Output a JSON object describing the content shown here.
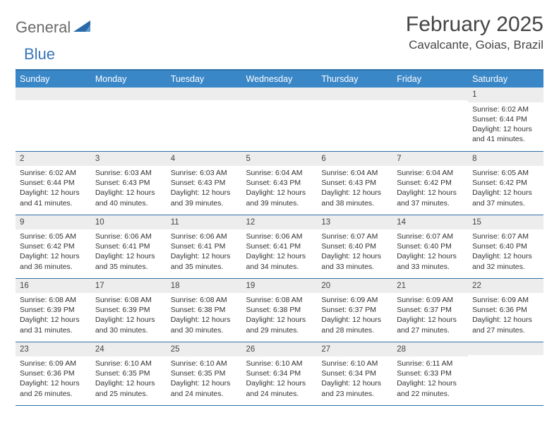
{
  "logo": {
    "part1": "General",
    "part2": "Blue"
  },
  "title": "February 2025",
  "location": "Cavalcante, Goias, Brazil",
  "colors": {
    "header_bg": "#3a87c8",
    "header_text": "#ffffff",
    "border": "#2f6fa8",
    "daynum_bg": "#ededed",
    "page_bg": "#ffffff",
    "text": "#333333",
    "logo_gray": "#6a6a6a",
    "logo_blue": "#3a75b8"
  },
  "typography": {
    "title_fontsize": 30,
    "location_fontsize": 17,
    "header_fontsize": 12.5,
    "cell_fontsize": 10.5,
    "daynum_fontsize": 11.5
  },
  "weekdays": [
    "Sunday",
    "Monday",
    "Tuesday",
    "Wednesday",
    "Thursday",
    "Friday",
    "Saturday"
  ],
  "weeks": [
    [
      {
        "n": "",
        "t": ""
      },
      {
        "n": "",
        "t": ""
      },
      {
        "n": "",
        "t": ""
      },
      {
        "n": "",
        "t": ""
      },
      {
        "n": "",
        "t": ""
      },
      {
        "n": "",
        "t": ""
      },
      {
        "n": "1",
        "t": "Sunrise: 6:02 AM\nSunset: 6:44 PM\nDaylight: 12 hours and 41 minutes."
      }
    ],
    [
      {
        "n": "2",
        "t": "Sunrise: 6:02 AM\nSunset: 6:44 PM\nDaylight: 12 hours and 41 minutes."
      },
      {
        "n": "3",
        "t": "Sunrise: 6:03 AM\nSunset: 6:43 PM\nDaylight: 12 hours and 40 minutes."
      },
      {
        "n": "4",
        "t": "Sunrise: 6:03 AM\nSunset: 6:43 PM\nDaylight: 12 hours and 39 minutes."
      },
      {
        "n": "5",
        "t": "Sunrise: 6:04 AM\nSunset: 6:43 PM\nDaylight: 12 hours and 39 minutes."
      },
      {
        "n": "6",
        "t": "Sunrise: 6:04 AM\nSunset: 6:43 PM\nDaylight: 12 hours and 38 minutes."
      },
      {
        "n": "7",
        "t": "Sunrise: 6:04 AM\nSunset: 6:42 PM\nDaylight: 12 hours and 37 minutes."
      },
      {
        "n": "8",
        "t": "Sunrise: 6:05 AM\nSunset: 6:42 PM\nDaylight: 12 hours and 37 minutes."
      }
    ],
    [
      {
        "n": "9",
        "t": "Sunrise: 6:05 AM\nSunset: 6:42 PM\nDaylight: 12 hours and 36 minutes."
      },
      {
        "n": "10",
        "t": "Sunrise: 6:06 AM\nSunset: 6:41 PM\nDaylight: 12 hours and 35 minutes."
      },
      {
        "n": "11",
        "t": "Sunrise: 6:06 AM\nSunset: 6:41 PM\nDaylight: 12 hours and 35 minutes."
      },
      {
        "n": "12",
        "t": "Sunrise: 6:06 AM\nSunset: 6:41 PM\nDaylight: 12 hours and 34 minutes."
      },
      {
        "n": "13",
        "t": "Sunrise: 6:07 AM\nSunset: 6:40 PM\nDaylight: 12 hours and 33 minutes."
      },
      {
        "n": "14",
        "t": "Sunrise: 6:07 AM\nSunset: 6:40 PM\nDaylight: 12 hours and 33 minutes."
      },
      {
        "n": "15",
        "t": "Sunrise: 6:07 AM\nSunset: 6:40 PM\nDaylight: 12 hours and 32 minutes."
      }
    ],
    [
      {
        "n": "16",
        "t": "Sunrise: 6:08 AM\nSunset: 6:39 PM\nDaylight: 12 hours and 31 minutes."
      },
      {
        "n": "17",
        "t": "Sunrise: 6:08 AM\nSunset: 6:39 PM\nDaylight: 12 hours and 30 minutes."
      },
      {
        "n": "18",
        "t": "Sunrise: 6:08 AM\nSunset: 6:38 PM\nDaylight: 12 hours and 30 minutes."
      },
      {
        "n": "19",
        "t": "Sunrise: 6:08 AM\nSunset: 6:38 PM\nDaylight: 12 hours and 29 minutes."
      },
      {
        "n": "20",
        "t": "Sunrise: 6:09 AM\nSunset: 6:37 PM\nDaylight: 12 hours and 28 minutes."
      },
      {
        "n": "21",
        "t": "Sunrise: 6:09 AM\nSunset: 6:37 PM\nDaylight: 12 hours and 27 minutes."
      },
      {
        "n": "22",
        "t": "Sunrise: 6:09 AM\nSunset: 6:36 PM\nDaylight: 12 hours and 27 minutes."
      }
    ],
    [
      {
        "n": "23",
        "t": "Sunrise: 6:09 AM\nSunset: 6:36 PM\nDaylight: 12 hours and 26 minutes."
      },
      {
        "n": "24",
        "t": "Sunrise: 6:10 AM\nSunset: 6:35 PM\nDaylight: 12 hours and 25 minutes."
      },
      {
        "n": "25",
        "t": "Sunrise: 6:10 AM\nSunset: 6:35 PM\nDaylight: 12 hours and 24 minutes."
      },
      {
        "n": "26",
        "t": "Sunrise: 6:10 AM\nSunset: 6:34 PM\nDaylight: 12 hours and 24 minutes."
      },
      {
        "n": "27",
        "t": "Sunrise: 6:10 AM\nSunset: 6:34 PM\nDaylight: 12 hours and 23 minutes."
      },
      {
        "n": "28",
        "t": "Sunrise: 6:11 AM\nSunset: 6:33 PM\nDaylight: 12 hours and 22 minutes."
      },
      {
        "n": "",
        "t": ""
      }
    ]
  ]
}
